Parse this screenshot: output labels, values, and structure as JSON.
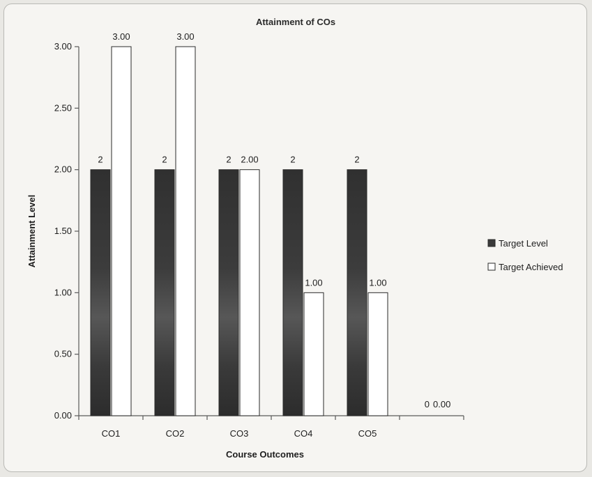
{
  "chart_data": {
    "type": "bar",
    "title": "Attainment of COs",
    "xlabel": "Course Outcomes",
    "ylabel": "Attainment Level",
    "ylim": [
      0,
      3
    ],
    "yticks": [
      "0.00",
      "0.50",
      "1.00",
      "1.50",
      "2.00",
      "2.50",
      "3.00"
    ],
    "categories": [
      "CO1",
      "CO2",
      "CO3",
      "CO4",
      "CO5",
      ""
    ],
    "series": [
      {
        "name": "Target Level",
        "values": [
          2,
          2,
          2,
          2,
          2,
          0
        ],
        "labels": [
          "2",
          "2",
          "2",
          "2",
          "2",
          "0"
        ],
        "color": "#3a3a3a"
      },
      {
        "name": "Target Achieved",
        "values": [
          3,
          3,
          2,
          1,
          1,
          0
        ],
        "labels": [
          "3.00",
          "3.00",
          "2.00",
          "1.00",
          "1.00",
          "0.00"
        ],
        "color": "#ffffff"
      }
    ],
    "grid": false,
    "legend_position": "right"
  }
}
